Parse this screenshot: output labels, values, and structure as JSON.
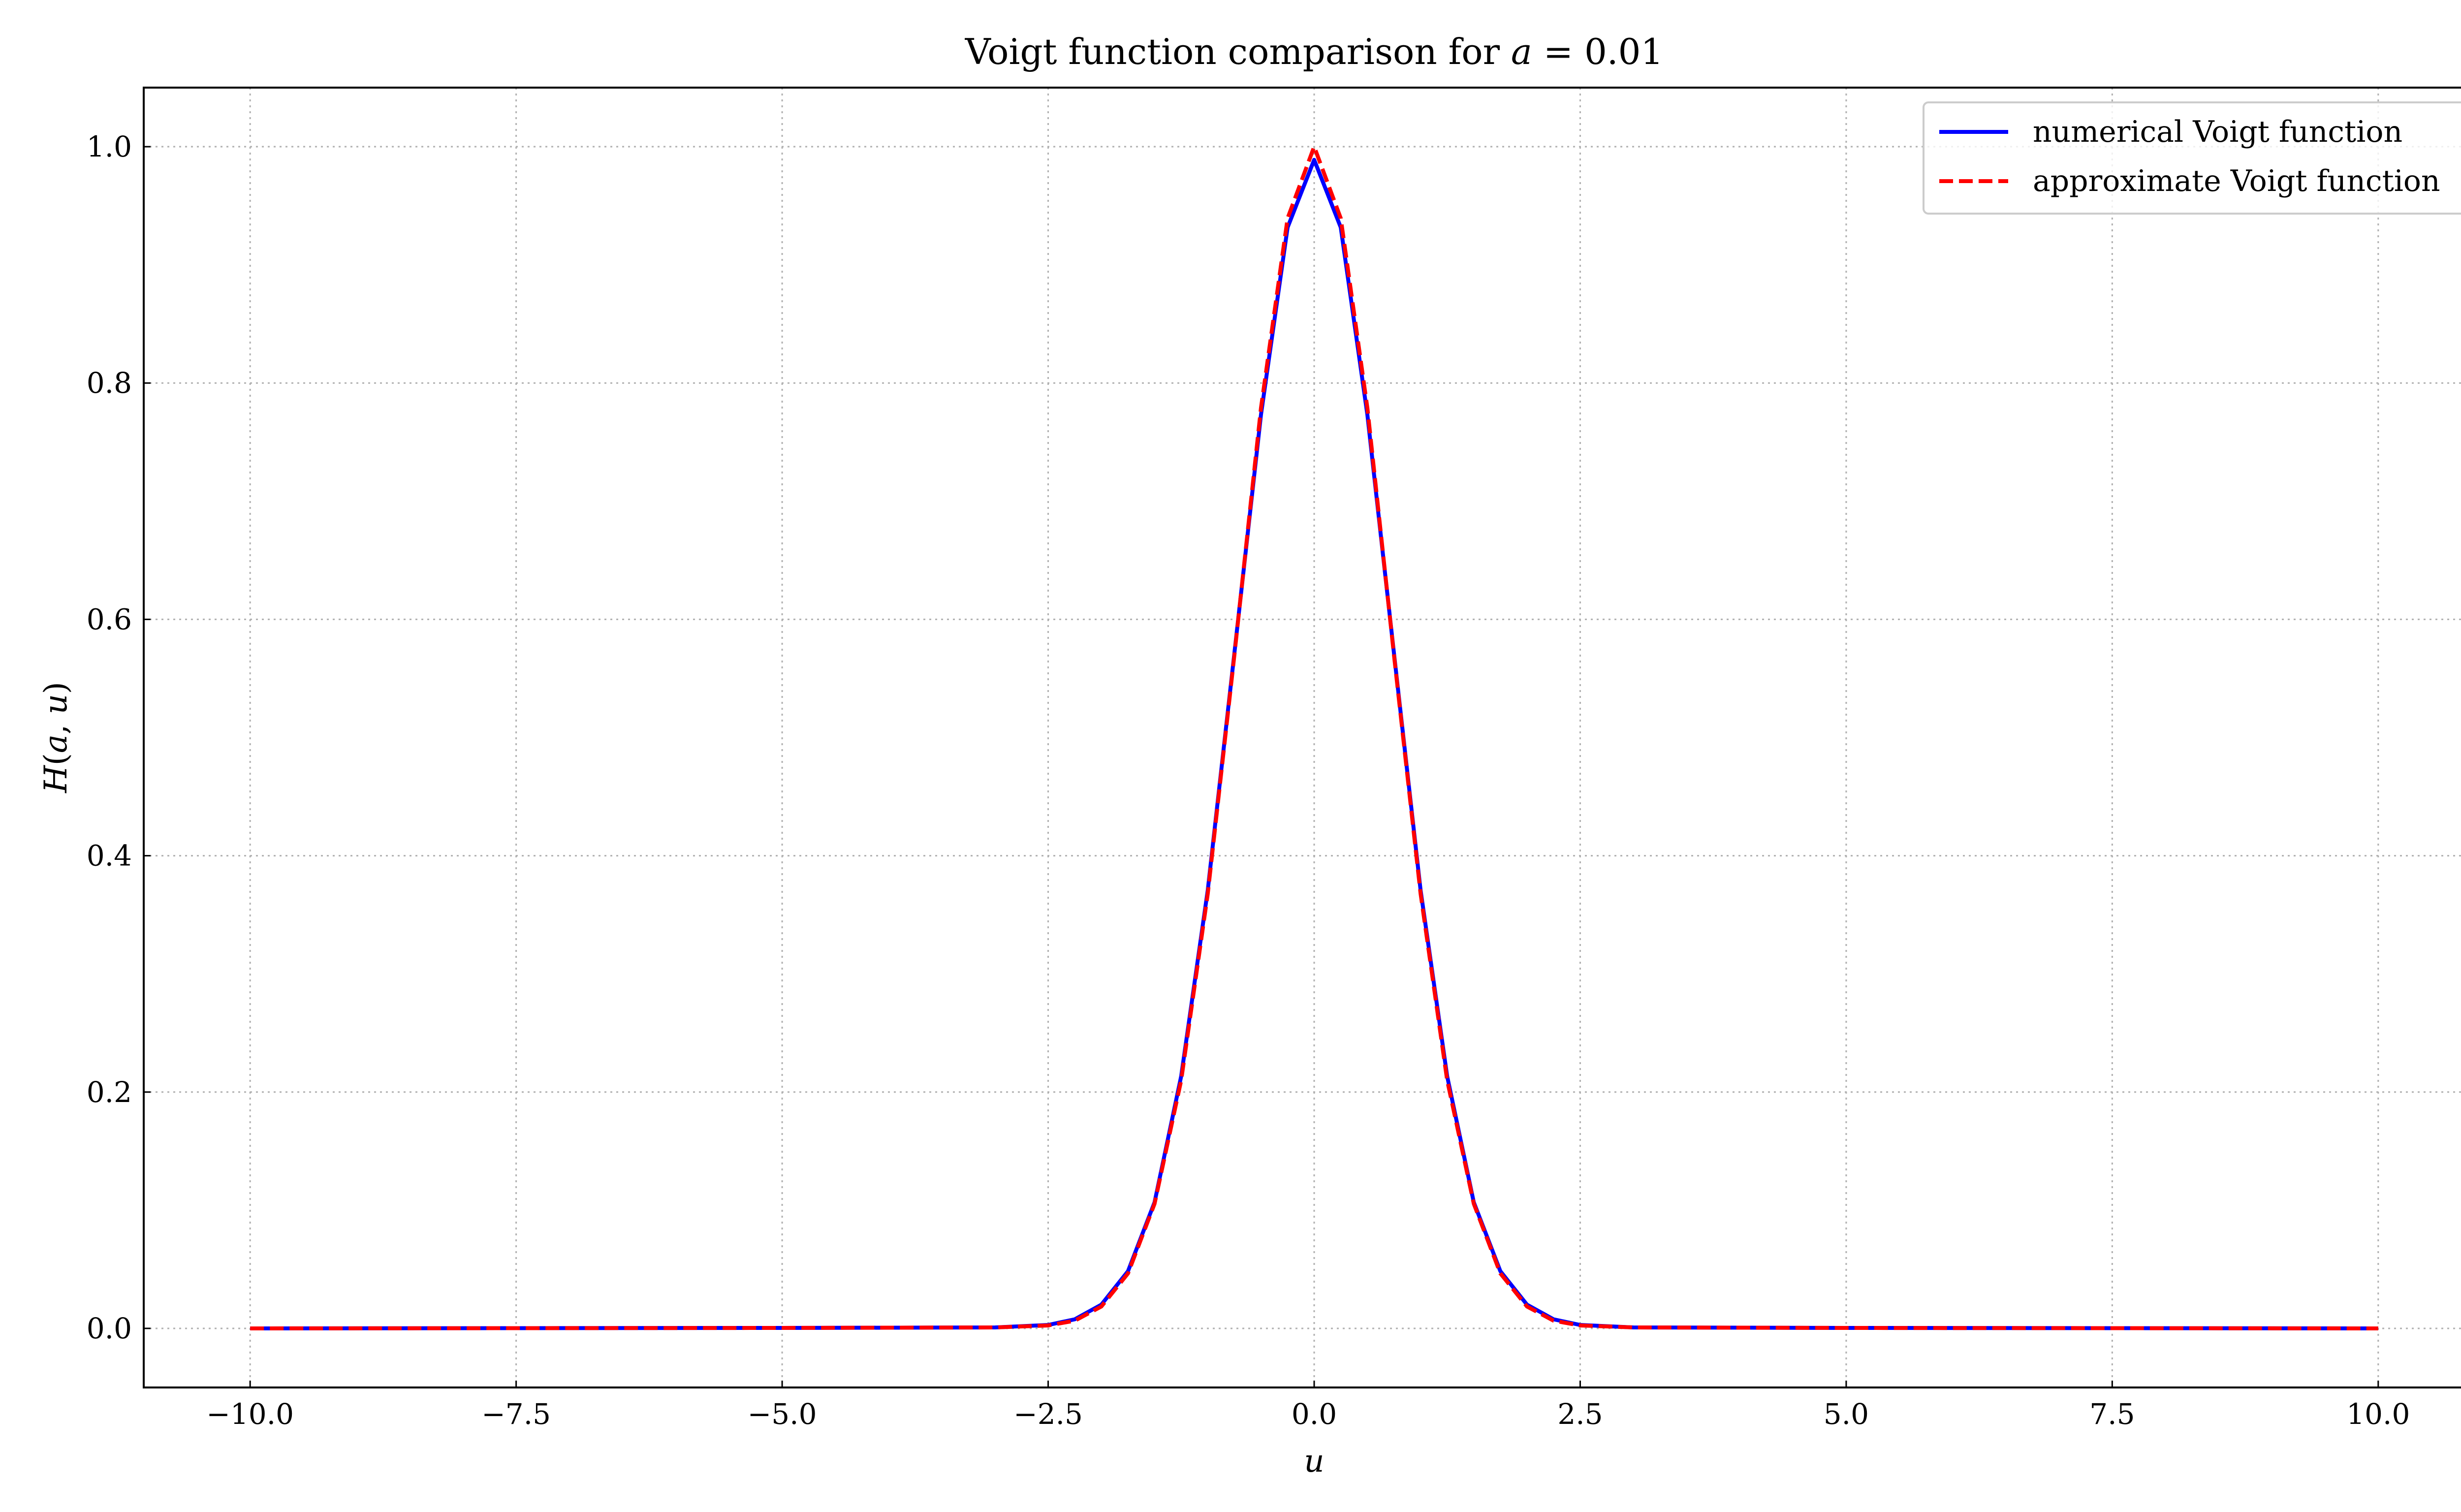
{
  "chart_data": {
    "type": "line",
    "title": "Voigt function comparison for a = 0.01",
    "title_parts": {
      "prefix": "Voigt function comparison for ",
      "var": "a",
      "suffix": " = 0.01"
    },
    "xlabel": "u",
    "ylabel_parts": {
      "fn": "H",
      "open": "(",
      "a": "a",
      "sep": ", ",
      "u": "u",
      "close": ")"
    },
    "xlim": [
      -11.0,
      11.0
    ],
    "ylim": [
      -0.05,
      1.05
    ],
    "xticks": [
      -10.0,
      -7.5,
      -5.0,
      -2.5,
      0.0,
      2.5,
      5.0,
      7.5,
      10.0
    ],
    "xtick_labels": [
      "−10.0",
      "−7.5",
      "−5.0",
      "−2.5",
      "0.0",
      "2.5",
      "5.0",
      "7.5",
      "10.0"
    ],
    "yticks": [
      0.0,
      0.2,
      0.4,
      0.6,
      0.8,
      1.0
    ],
    "ytick_labels": [
      "0.0",
      "0.2",
      "0.4",
      "0.6",
      "0.8",
      "1.0"
    ],
    "grid": true,
    "legend_position": "top-right",
    "series": [
      {
        "name": "numerical Voigt function",
        "color": "#0000ff",
        "style": "solid",
        "x": [
          -10.0,
          -7.5,
          -5.0,
          -3.0,
          -2.5,
          -2.25,
          -2.0,
          -1.75,
          -1.5,
          -1.25,
          -1.0,
          -0.75,
          -0.5,
          -0.25,
          0.0,
          0.25,
          0.5,
          0.75,
          1.0,
          1.25,
          1.5,
          1.75,
          2.0,
          2.25,
          2.5,
          3.0,
          5.0,
          7.5,
          10.0
        ],
        "y": [
          0.0,
          0.0002,
          0.0004,
          0.0008,
          0.0029,
          0.0077,
          0.0201,
          0.0484,
          0.1067,
          0.2134,
          0.3708,
          0.5714,
          0.7731,
          0.9317,
          0.9889,
          0.9317,
          0.7731,
          0.5714,
          0.3708,
          0.2134,
          0.1067,
          0.0484,
          0.0201,
          0.0077,
          0.0029,
          0.0008,
          0.0004,
          0.0002,
          0.0
        ]
      },
      {
        "name": "approximate Voigt function",
        "color": "#ff0000",
        "style": "dashed",
        "x": [
          -10.0,
          -7.5,
          -5.0,
          -3.0,
          -2.5,
          -2.25,
          -2.0,
          -1.75,
          -1.5,
          -1.25,
          -1.0,
          -0.75,
          -0.5,
          -0.25,
          0.0,
          0.25,
          0.5,
          0.75,
          1.0,
          1.25,
          1.5,
          1.75,
          2.0,
          2.25,
          2.5,
          3.0,
          5.0,
          7.5,
          10.0
        ],
        "y": [
          0.0,
          0.0002,
          0.0004,
          0.0008,
          0.0025,
          0.0065,
          0.0185,
          0.0465,
          0.1055,
          0.21,
          0.3679,
          0.5698,
          0.7788,
          0.9394,
          1.0,
          0.9394,
          0.7788,
          0.5698,
          0.3679,
          0.21,
          0.1055,
          0.0465,
          0.0185,
          0.0065,
          0.0025,
          0.0008,
          0.0004,
          0.0002,
          0.0
        ]
      }
    ]
  }
}
